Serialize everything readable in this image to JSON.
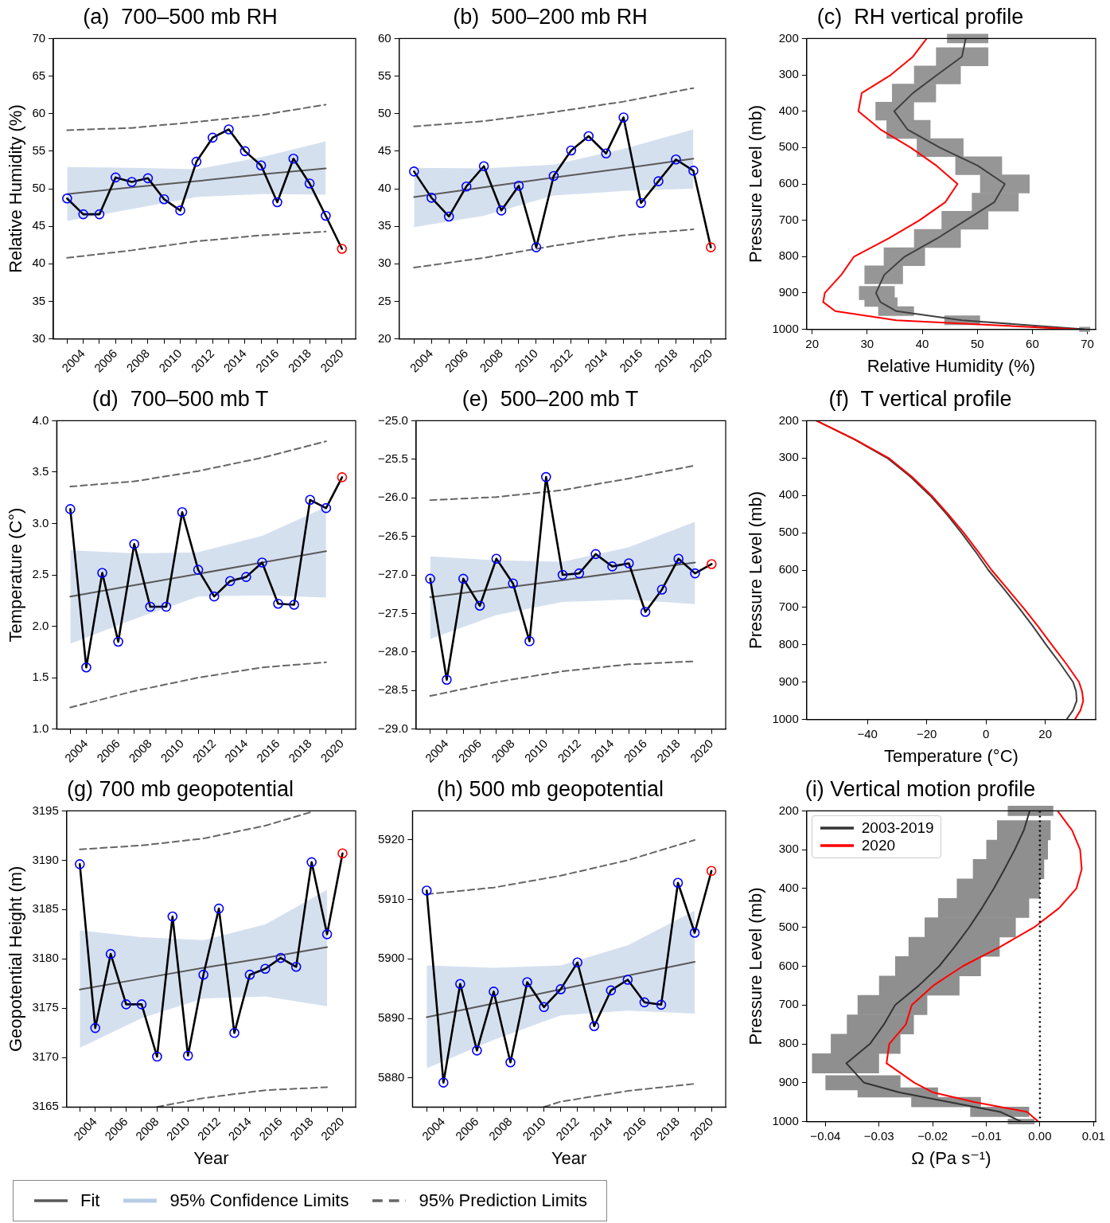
{
  "chart_data": [
    {
      "type": "line",
      "title": "(a)  700–500 mb RH",
      "ylabel": "Relative Humidity (%)",
      "xlim": [
        2002.15,
        2020.85
      ],
      "ylim": [
        30,
        70
      ],
      "yticks": [
        30,
        35,
        40,
        45,
        50,
        55,
        60,
        65,
        70
      ],
      "xticks": [
        {
          "value": 2003,
          "label": null
        },
        2004,
        {
          "value": 2005,
          "label": null
        },
        2006,
        {
          "value": 2007,
          "label": null
        },
        2008,
        {
          "value": 2009,
          "label": null
        },
        2010,
        {
          "value": 2011,
          "label": null
        },
        2012,
        {
          "value": 2013,
          "label": null
        },
        2014,
        {
          "value": 2015,
          "label": null
        },
        2016,
        {
          "value": 2017,
          "label": null
        },
        2018,
        {
          "value": 2019,
          "label": null
        },
        2020
      ],
      "legend": "bottom",
      "annotations": [
        "95% Confidence Limits"
      ],
      "series": [
        {
          "name": "Fit",
          "color": "#5a5a5a",
          "x": [
            2003,
            2007,
            2011,
            2015,
            2019
          ],
          "values": [
            49.3,
            50.2,
            51.0,
            51.9,
            52.7
          ],
          "upper": [
            52.9,
            52.8,
            52.6,
            54.2,
            56.3
          ],
          "lower": [
            45.7,
            47.3,
            48.9,
            49.3,
            49.2
          ]
        },
        {
          "name": "95% Prediction Limits",
          "color": "#666666",
          "line_style": "dashed",
          "x": [
            2003,
            2007,
            2011,
            2015,
            2019
          ],
          "values": [
            57.8,
            58.1,
            58.9,
            59.8,
            61.2
          ]
        },
        {
          "color": "#666666",
          "line_style": "dashed",
          "x": [
            2003,
            2007,
            2011,
            2015,
            2019
          ],
          "values": [
            40.8,
            41.8,
            43.0,
            43.8,
            44.3
          ]
        },
        {
          "color": "#000000",
          "marker": "circle",
          "x": [
            2003,
            2004,
            2005,
            2006,
            2007,
            2008,
            2009,
            2010,
            2011,
            2012,
            2013,
            2014,
            2015,
            2016,
            2017,
            2018,
            2019,
            2020
          ],
          "values": [
            48.7,
            46.6,
            46.6,
            51.5,
            50.9,
            51.4,
            48.6,
            47.1,
            53.6,
            56.8,
            57.9,
            55.0,
            53.1,
            48.2,
            54.0,
            50.7,
            46.4,
            42.0
          ],
          "colors": [
            "#0000ff",
            "#0000ff",
            "#0000ff",
            "#0000ff",
            "#0000ff",
            "#0000ff",
            "#0000ff",
            "#0000ff",
            "#0000ff",
            "#0000ff",
            "#0000ff",
            "#0000ff",
            "#0000ff",
            "#0000ff",
            "#0000ff",
            "#0000ff",
            "#0000ff",
            "#ff0000"
          ]
        }
      ]
    },
    {
      "type": "line",
      "title": "(b)  500–200 mb RH",
      "xlim": [
        2002.15,
        2020.85
      ],
      "ylim": [
        20,
        60
      ],
      "yticks": [
        20,
        25,
        30,
        35,
        40,
        45,
        50,
        55,
        60
      ],
      "xticks": [
        {
          "value": 2003,
          "label": null
        },
        2004,
        {
          "value": 2005,
          "label": null
        },
        2006,
        {
          "value": 2007,
          "label": null
        },
        2008,
        {
          "value": 2009,
          "label": null
        },
        2010,
        {
          "value": 2011,
          "label": null
        },
        2012,
        {
          "value": 2013,
          "label": null
        },
        2014,
        {
          "value": 2015,
          "label": null
        },
        2016,
        {
          "value": 2017,
          "label": null
        },
        2018,
        {
          "value": 2019,
          "label": null
        },
        2020
      ],
      "series": [
        {
          "color": "#5a5a5a",
          "x": [
            2003,
            2007,
            2011,
            2015,
            2019
          ],
          "values": [
            38.9,
            40.2,
            41.5,
            42.7,
            44.0
          ],
          "upper": [
            42.8,
            42.7,
            43.2,
            45.3,
            47.9
          ],
          "lower": [
            34.9,
            36.4,
            39.1,
            39.7,
            40.0
          ]
        },
        {
          "color": "#666666",
          "line_style": "dashed",
          "x": [
            2003,
            2007,
            2011,
            2015,
            2019
          ],
          "values": [
            48.3,
            49.0,
            50.2,
            51.6,
            53.4
          ]
        },
        {
          "color": "#666666",
          "line_style": "dashed",
          "x": [
            2003,
            2007,
            2011,
            2015,
            2019
          ],
          "values": [
            29.5,
            30.8,
            32.4,
            33.8,
            34.6
          ]
        },
        {
          "color": "#000000",
          "marker": "circle",
          "x": [
            2003,
            2004,
            2005,
            2006,
            2007,
            2008,
            2009,
            2010,
            2011,
            2012,
            2013,
            2014,
            2015,
            2016,
            2017,
            2018,
            2019,
            2020
          ],
          "values": [
            42.3,
            38.8,
            36.3,
            40.3,
            43.0,
            37.1,
            40.4,
            32.2,
            41.7,
            45.1,
            47.0,
            44.7,
            49.5,
            38.1,
            41.0,
            43.9,
            42.4,
            32.2
          ],
          "colors": [
            "#0000ff",
            "#0000ff",
            "#0000ff",
            "#0000ff",
            "#0000ff",
            "#0000ff",
            "#0000ff",
            "#0000ff",
            "#0000ff",
            "#0000ff",
            "#0000ff",
            "#0000ff",
            "#0000ff",
            "#0000ff",
            "#0000ff",
            "#0000ff",
            "#0000ff",
            "#ff0000"
          ]
        }
      ]
    },
    {
      "type": "line",
      "title": "(c)  RH vertical profile",
      "xlabel": "Relative Humidity (%)",
      "ylabel": "Pressure Level (mb)",
      "xlim": [
        19,
        71.5
      ],
      "xticks": [
        20,
        30,
        40,
        50,
        60,
        70
      ],
      "ylim": [
        1000,
        200
      ],
      "yticks": [
        200,
        300,
        400,
        500,
        600,
        700,
        800,
        900,
        1000
      ],
      "series": [
        {
          "color": "#404040",
          "x": [
            47.9,
            47.2,
            42.7,
            38.3,
            34.9,
            37.3,
            43.2,
            50.1,
            55.0,
            53.1,
            47.9,
            42.7,
            36.8,
            33.1,
            31.6,
            32.4,
            35.3,
            47.2,
            69.4
          ],
          "values": [
            200,
            250,
            300,
            350,
            400,
            450,
            500,
            550,
            600,
            650,
            700,
            750,
            800,
            850,
            900,
            925,
            950,
            975,
            1000
          ],
          "xerrors": [
            [
              44.5,
              52.0
            ],
            [
              42.5,
              52.0
            ],
            [
              38.5,
              47.0
            ],
            [
              34.5,
              42.5
            ],
            [
              31.5,
              38.5
            ],
            [
              33.5,
              41.5
            ],
            [
              39.0,
              47.5
            ],
            [
              46.0,
              54.5
            ],
            [
              50.5,
              59.5
            ],
            [
              49.0,
              57.5
            ],
            [
              43.5,
              52.0
            ],
            [
              38.5,
              47.0
            ],
            [
              33.0,
              40.5
            ],
            [
              29.5,
              36.5
            ],
            [
              28.5,
              35.0
            ],
            [
              29.5,
              35.5
            ],
            [
              32.0,
              38.5
            ],
            [
              44.0,
              50.5
            ],
            [
              68.5,
              70.5
            ]
          ]
        },
        {
          "color": "#ff0000",
          "x": [
            40.8,
            38.3,
            34.3,
            29.0,
            28.4,
            32.4,
            37.9,
            42.6,
            46.4,
            44.2,
            39.5,
            33.9,
            27.6,
            25.3,
            22.3,
            22.0,
            24.2,
            35.3,
            67.9
          ],
          "values": [
            200,
            250,
            300,
            350,
            400,
            450,
            500,
            550,
            600,
            650,
            700,
            750,
            800,
            850,
            900,
            925,
            950,
            975,
            1000
          ]
        }
      ]
    },
    {
      "type": "line",
      "title": "(d)  700–500 mb T",
      "ylabel": "Temperature (C°)",
      "xlim": [
        2002.15,
        2020.85
      ],
      "ylim": [
        1.0,
        4.0
      ],
      "yticks": [
        {
          "value": 1,
          "label": "1.0"
        },
        1.5,
        {
          "value": 2,
          "label": "2.0"
        },
        2.5,
        {
          "value": 3,
          "label": "3.0"
        },
        3.5,
        {
          "value": 4,
          "label": "4.0"
        }
      ],
      "xticks": [
        {
          "value": 2003,
          "label": null
        },
        2004,
        {
          "value": 2005,
          "label": null
        },
        2006,
        {
          "value": 2007,
          "label": null
        },
        2008,
        {
          "value": 2009,
          "label": null
        },
        2010,
        {
          "value": 2011,
          "label": null
        },
        2012,
        {
          "value": 2013,
          "label": null
        },
        2014,
        {
          "value": 2015,
          "label": null
        },
        2016,
        {
          "value": 2017,
          "label": null
        },
        2018,
        {
          "value": 2019,
          "label": null
        },
        2020
      ],
      "series": [
        {
          "color": "#5a5a5a",
          "x": [
            2003,
            2007,
            2011,
            2015,
            2019
          ],
          "values": [
            2.29,
            2.4,
            2.51,
            2.62,
            2.73
          ],
          "upper": [
            2.74,
            2.71,
            2.72,
            2.88,
            3.16
          ],
          "lower": [
            1.83,
            2.07,
            2.29,
            2.3,
            2.28
          ]
        },
        {
          "color": "#666666",
          "line_style": "dashed",
          "x": [
            2003,
            2007,
            2011,
            2015,
            2019
          ],
          "values": [
            3.36,
            3.41,
            3.51,
            3.64,
            3.8
          ]
        },
        {
          "color": "#666666",
          "line_style": "dashed",
          "x": [
            2003,
            2007,
            2011,
            2015,
            2019
          ],
          "values": [
            1.21,
            1.37,
            1.5,
            1.6,
            1.65
          ]
        },
        {
          "color": "#000000",
          "marker": "circle",
          "x": [
            2003,
            2004,
            2005,
            2006,
            2007,
            2008,
            2009,
            2010,
            2011,
            2012,
            2013,
            2014,
            2015,
            2016,
            2017,
            2018,
            2019,
            2020
          ],
          "values": [
            3.14,
            1.6,
            2.52,
            1.85,
            2.8,
            2.19,
            2.19,
            3.11,
            2.55,
            2.29,
            2.44,
            2.48,
            2.62,
            2.22,
            2.21,
            3.23,
            3.15,
            3.45
          ],
          "colors": [
            "#0000ff",
            "#0000ff",
            "#0000ff",
            "#0000ff",
            "#0000ff",
            "#0000ff",
            "#0000ff",
            "#0000ff",
            "#0000ff",
            "#0000ff",
            "#0000ff",
            "#0000ff",
            "#0000ff",
            "#0000ff",
            "#0000ff",
            "#0000ff",
            "#0000ff",
            "#ff0000"
          ]
        }
      ]
    },
    {
      "type": "line",
      "title": "(e)  500–200 mb T",
      "xlim": [
        2002.15,
        2020.85
      ],
      "ylim": [
        -29.0,
        -25.0
      ],
      "yticks": [
        {
          "value": -29,
          "label": "−29.0"
        },
        {
          "value": -28.5,
          "label": "−28.5"
        },
        {
          "value": -28,
          "label": "−28.0"
        },
        {
          "value": -27.5,
          "label": "−27.5"
        },
        {
          "value": -27,
          "label": "−27.0"
        },
        {
          "value": -26.5,
          "label": "−26.5"
        },
        {
          "value": -26,
          "label": "−26.0"
        },
        {
          "value": -25.5,
          "label": "−25.5"
        },
        {
          "value": -25,
          "label": "−25.0"
        }
      ],
      "xticks": [
        {
          "value": 2003,
          "label": null
        },
        2004,
        {
          "value": 2005,
          "label": null
        },
        2006,
        {
          "value": 2007,
          "label": null
        },
        2008,
        {
          "value": 2009,
          "label": null
        },
        2010,
        {
          "value": 2011,
          "label": null
        },
        2012,
        {
          "value": 2013,
          "label": null
        },
        2014,
        {
          "value": 2015,
          "label": null
        },
        2016,
        {
          "value": 2017,
          "label": null
        },
        2018,
        {
          "value": 2019,
          "label": null
        },
        2020
      ],
      "series": [
        {
          "color": "#5a5a5a",
          "x": [
            2003,
            2007,
            2011,
            2015,
            2019
          ],
          "values": [
            -27.29,
            -27.18,
            -27.07,
            -26.95,
            -26.84
          ],
          "upper": [
            -26.76,
            -26.81,
            -26.83,
            -26.64,
            -26.31
          ],
          "lower": [
            -27.83,
            -27.52,
            -27.35,
            -27.32,
            -27.38
          ]
        },
        {
          "color": "#666666",
          "line_style": "dashed",
          "x": [
            2003,
            2007,
            2011,
            2015,
            2019
          ],
          "values": [
            -26.03,
            -25.99,
            -25.9,
            -25.75,
            -25.58
          ]
        },
        {
          "color": "#666666",
          "line_style": "dashed",
          "x": [
            2003,
            2007,
            2011,
            2015,
            2019
          ],
          "values": [
            -28.57,
            -28.39,
            -28.25,
            -28.16,
            -28.12
          ]
        },
        {
          "color": "#000000",
          "marker": "circle",
          "x": [
            2003,
            2004,
            2005,
            2006,
            2007,
            2008,
            2009,
            2010,
            2011,
            2012,
            2013,
            2014,
            2015,
            2016,
            2017,
            2018,
            2019,
            2020
          ],
          "values": [
            -27.05,
            -28.36,
            -27.05,
            -27.4,
            -26.79,
            -27.11,
            -27.86,
            -25.73,
            -27.0,
            -26.98,
            -26.73,
            -26.89,
            -26.85,
            -27.48,
            -27.19,
            -26.79,
            -26.98,
            -26.86
          ],
          "colors": [
            "#0000ff",
            "#0000ff",
            "#0000ff",
            "#0000ff",
            "#0000ff",
            "#0000ff",
            "#0000ff",
            "#0000ff",
            "#0000ff",
            "#0000ff",
            "#0000ff",
            "#0000ff",
            "#0000ff",
            "#0000ff",
            "#0000ff",
            "#0000ff",
            "#0000ff",
            "#ff0000"
          ]
        }
      ]
    },
    {
      "type": "line",
      "title": "(f)  T vertical profile",
      "xlabel": "Temperature (°C)",
      "ylabel": "Pressure Level (mb)",
      "xlim": [
        -60.5,
        37
      ],
      "xticks": [
        {
          "value": -40,
          "label": "−40"
        },
        {
          "value": -20,
          "label": "−20"
        },
        0,
        20
      ],
      "ylim": [
        1000,
        200
      ],
      "yticks": [
        200,
        300,
        400,
        500,
        600,
        700,
        800,
        900,
        1000
      ],
      "series": [
        {
          "color": "#404040",
          "x": [
            -57.2,
            -44.4,
            -33.3,
            -25.5,
            -18.9,
            -13.3,
            -8.3,
            -3.6,
            0.8,
            6.0,
            11.0,
            15.8,
            20.3,
            25.0,
            29.4,
            30.4,
            30.6,
            29.4,
            27.2
          ],
          "values": [
            200,
            250,
            300,
            350,
            400,
            450,
            500,
            550,
            600,
            650,
            700,
            750,
            800,
            850,
            900,
            925,
            950,
            975,
            1000
          ]
        },
        {
          "color": "#ff0000",
          "x": [
            -57.2,
            -44.2,
            -32.8,
            -25.0,
            -18.4,
            -12.8,
            -7.5,
            -2.7,
            1.9,
            7.2,
            12.5,
            17.5,
            22.2,
            27.0,
            31.4,
            32.4,
            32.8,
            31.9,
            30.0
          ],
          "values": [
            200,
            250,
            300,
            350,
            400,
            450,
            500,
            550,
            600,
            650,
            700,
            750,
            800,
            850,
            900,
            925,
            950,
            975,
            1000
          ]
        }
      ]
    },
    {
      "type": "line",
      "title": "(g) 700 mb geopotential",
      "xlabel": "Year",
      "ylabel": "Geopotential Height (m)",
      "xlim": [
        2002.15,
        2020.85
      ],
      "ylim": [
        3165,
        3195
      ],
      "yticks": [
        3165,
        3170,
        3175,
        3180,
        3185,
        3190,
        3195
      ],
      "xticks": [
        {
          "value": 2003,
          "label": null
        },
        2004,
        {
          "value": 2005,
          "label": null
        },
        2006,
        {
          "value": 2007,
          "label": null
        },
        2008,
        {
          "value": 2009,
          "label": null
        },
        2010,
        {
          "value": 2011,
          "label": null
        },
        2012,
        {
          "value": 2013,
          "label": null
        },
        2014,
        {
          "value": 2015,
          "label": null
        },
        2016,
        {
          "value": 2017,
          "label": null
        },
        2018,
        {
          "value": 2019,
          "label": null
        },
        2020
      ],
      "series": [
        {
          "color": "#5a5a5a",
          "x": [
            2003,
            2007,
            2011,
            2015,
            2019
          ],
          "values": [
            3176.9,
            3178.0,
            3179.1,
            3180.1,
            3181.2
          ],
          "upper": [
            3182.9,
            3182.2,
            3181.9,
            3183.5,
            3187.0
          ],
          "lower": [
            3171.0,
            3174.0,
            3176.0,
            3176.2,
            3175.2
          ]
        },
        {
          "color": "#666666",
          "line_style": "dashed",
          "x": [
            2003,
            2007,
            2011,
            2015,
            2018
          ],
          "values": [
            3191.1,
            3191.5,
            3192.2,
            3193.5,
            3194.9
          ]
        },
        {
          "color": "#666666",
          "line_style": "dashed",
          "x": [
            2008,
            2011,
            2015,
            2019
          ],
          "values": [
            3165.0,
            3165.9,
            3166.7,
            3167.0
          ]
        },
        {
          "color": "#000000",
          "marker": "circle",
          "x": [
            2003,
            2004,
            2005,
            2006,
            2007,
            2008,
            2009,
            2010,
            2011,
            2012,
            2013,
            2014,
            2015,
            2016,
            2017,
            2018,
            2019,
            2020
          ],
          "values": [
            3189.6,
            3173.0,
            3180.5,
            3175.4,
            3175.4,
            3170.1,
            3184.3,
            3170.2,
            3178.4,
            3185.1,
            3172.5,
            3178.4,
            3179.0,
            3180.1,
            3179.2,
            3189.8,
            3182.5,
            3190.7
          ],
          "colors": [
            "#0000ff",
            "#0000ff",
            "#0000ff",
            "#0000ff",
            "#0000ff",
            "#0000ff",
            "#0000ff",
            "#0000ff",
            "#0000ff",
            "#0000ff",
            "#0000ff",
            "#0000ff",
            "#0000ff",
            "#0000ff",
            "#0000ff",
            "#0000ff",
            "#0000ff",
            "#ff0000"
          ]
        }
      ]
    },
    {
      "type": "line",
      "title": "(h) 500 mb geopotential",
      "xlabel": "Year",
      "xlim": [
        2002.15,
        2020.85
      ],
      "ylim": [
        5875.1,
        5924.9
      ],
      "yticks": [
        5880,
        5890,
        5900,
        5910,
        5920
      ],
      "xticks": [
        {
          "value": 2003,
          "label": null
        },
        2004,
        {
          "value": 2005,
          "label": null
        },
        2006,
        {
          "value": 2007,
          "label": null
        },
        2008,
        {
          "value": 2009,
          "label": null
        },
        2010,
        {
          "value": 2011,
          "label": null
        },
        2012,
        {
          "value": 2013,
          "label": null
        },
        2014,
        {
          "value": 2015,
          "label": null
        },
        2016,
        {
          "value": 2017,
          "label": null
        },
        2018,
        {
          "value": 2019,
          "label": null
        },
        2020
      ],
      "series": [
        {
          "color": "#5a5a5a",
          "x": [
            2003,
            2007,
            2011,
            2015,
            2019
          ],
          "values": [
            5890.2,
            5892.5,
            5894.9,
            5897.2,
            5899.5
          ],
          "upper": [
            5898.9,
            5898.5,
            5898.9,
            5902.3,
            5908.1
          ],
          "lower": [
            5881.6,
            5886.4,
            5890.5,
            5891.3,
            5890.8
          ]
        },
        {
          "color": "#666666",
          "line_style": "dashed",
          "x": [
            2003,
            2007,
            2011,
            2015,
            2019
          ],
          "values": [
            5910.9,
            5912.0,
            5914.0,
            5916.6,
            5920.0
          ]
        },
        {
          "color": "#666666",
          "line_style": "dashed",
          "x": [
            2010,
            2011,
            2015,
            2019
          ],
          "values": [
            5875.1,
            5876.0,
            5877.8,
            5879.0
          ]
        },
        {
          "color": "#000000",
          "marker": "circle",
          "x": [
            2003,
            2004,
            2005,
            2006,
            2007,
            2008,
            2009,
            2010,
            2011,
            2012,
            2013,
            2014,
            2015,
            2016,
            2017,
            2018,
            2019,
            2020
          ],
          "values": [
            5911.5,
            5879.2,
            5895.8,
            5884.6,
            5894.5,
            5882.6,
            5896.1,
            5891.9,
            5894.9,
            5899.4,
            5888.7,
            5894.7,
            5896.5,
            5892.7,
            5892.3,
            5912.8,
            5904.4,
            5914.8
          ],
          "colors": [
            "#0000ff",
            "#0000ff",
            "#0000ff",
            "#0000ff",
            "#0000ff",
            "#0000ff",
            "#0000ff",
            "#0000ff",
            "#0000ff",
            "#0000ff",
            "#0000ff",
            "#0000ff",
            "#0000ff",
            "#0000ff",
            "#0000ff",
            "#0000ff",
            "#0000ff",
            "#ff0000"
          ]
        }
      ]
    },
    {
      "type": "line",
      "title": "(i) Vertical motion profile",
      "xlabel": "Ω (Pa s⁻¹)",
      "ylabel": "Pressure Level (mb)",
      "xlim": [
        -0.0435,
        0.0104
      ],
      "xticks": [
        {
          "value": -0.04,
          "label": "−0.04"
        },
        {
          "value": -0.03,
          "label": "−0.03"
        },
        {
          "value": -0.02,
          "label": "−0.02"
        },
        {
          "value": -0.01,
          "label": "−0.01"
        },
        {
          "value": 0,
          "label": "0.00"
        },
        0.01
      ],
      "ylim": [
        1000,
        200
      ],
      "yticks": [
        200,
        300,
        400,
        500,
        600,
        700,
        800,
        900,
        1000
      ],
      "legend": "top left",
      "ref_lines": [
        {
          "axis": "x",
          "value": 0,
          "color": "#000000",
          "line_style": "dotted"
        }
      ],
      "series": [
        {
          "name": "2003-2019",
          "color": "#333333",
          "x": [
            -0.0019,
            -0.003,
            -0.0047,
            -0.0066,
            -0.0086,
            -0.0108,
            -0.0132,
            -0.0159,
            -0.0188,
            -0.0226,
            -0.027,
            -0.0291,
            -0.0317,
            -0.0361,
            -0.0328,
            -0.0262,
            -0.0168,
            -0.0074,
            -0.0035
          ],
          "values": [
            200,
            250,
            300,
            350,
            400,
            450,
            500,
            550,
            600,
            650,
            700,
            750,
            800,
            850,
            900,
            925,
            950,
            975,
            1000
          ],
          "xerrors": [
            [
              -0.006,
              0.0025
            ],
            [
              -0.008,
              0.002
            ],
            [
              -0.01,
              0.0015
            ],
            [
              -0.0125,
              0.0008
            ],
            [
              -0.0155,
              0.0
            ],
            [
              -0.019,
              -0.002
            ],
            [
              -0.0215,
              -0.0045
            ],
            [
              -0.0245,
              -0.0075
            ],
            [
              -0.027,
              -0.011
            ],
            [
              -0.03,
              -0.015
            ],
            [
              -0.034,
              -0.021
            ],
            [
              -0.036,
              -0.0235
            ],
            [
              -0.039,
              -0.026
            ],
            [
              -0.0425,
              -0.03
            ],
            [
              -0.04,
              -0.026
            ],
            [
              -0.034,
              -0.019
            ],
            [
              -0.024,
              -0.011
            ],
            [
              -0.013,
              -0.002
            ],
            [
              -0.006,
              -0.001
            ]
          ]
        },
        {
          "name": "2020",
          "color": "#ff0000",
          "x": [
            0.0033,
            0.006,
            0.0075,
            0.0078,
            0.0068,
            0.0036,
            -0.0011,
            -0.0074,
            -0.0144,
            -0.0199,
            -0.0239,
            -0.025,
            -0.0281,
            -0.0286,
            -0.0234,
            -0.0199,
            -0.0121,
            -0.0024,
            -0.0003
          ],
          "values": [
            200,
            250,
            300,
            350,
            400,
            450,
            500,
            550,
            600,
            650,
            700,
            750,
            800,
            850,
            900,
            925,
            950,
            975,
            1000
          ]
        }
      ]
    }
  ]
}
